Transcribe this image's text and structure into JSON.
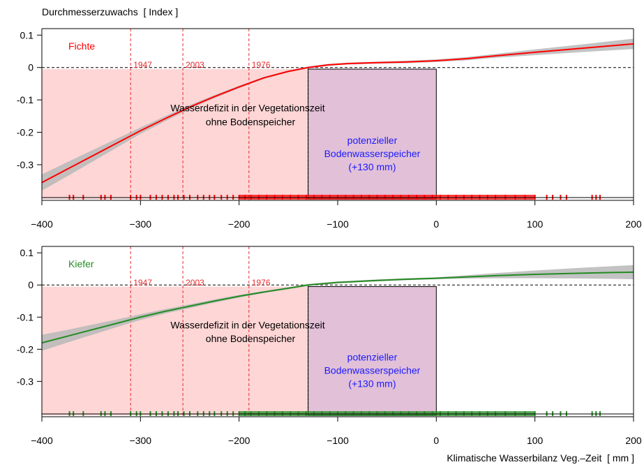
{
  "chart_data": {
    "type": "line",
    "y_axis_title": "Durchmesserzuwachs  [ Index ]",
    "x_axis_title": "Klimatische Wasserbilanz Veg.–Zeit  [ mm ]",
    "xlim": [
      -400,
      200
    ],
    "ylim": [
      -0.41,
      0.12
    ],
    "x_ticks": [
      -400,
      -300,
      -200,
      -100,
      0,
      100,
      200
    ],
    "x_tick_labels": [
      "−400",
      "−300",
      "−200",
      "−100",
      "0",
      "100",
      "200"
    ],
    "y_ticks": [
      0.1,
      0,
      -0.1,
      -0.2,
      -0.3
    ],
    "y_tick_labels": [
      "0.1",
      "0",
      "-0.1",
      "-0.2",
      "-0.3"
    ],
    "deficit_region": {
      "x": [
        -400,
        -130
      ],
      "y_top": -0.005,
      "color": "#ffd6d6",
      "label_line1": "Wasserdefizit in der Vegetationszeit",
      "label_line2": "ohne Bodenspeicher"
    },
    "storage_region": {
      "x": [
        -130,
        0
      ],
      "y_top": -0.005,
      "color": "#e2c0d8",
      "label_line1": "potenzieller",
      "label_line2": "Bodenwasserspeicher",
      "label_line3": "(+130 mm)",
      "label_color": "#1a1aff"
    },
    "year_markers": [
      {
        "label": "1947",
        "x": -310
      },
      {
        "label": "2003",
        "x": -257
      },
      {
        "label": "1976",
        "x": -190
      }
    ],
    "year_marker_color": "#e8292b",
    "panels": [
      {
        "name": "Fichte",
        "color": "#ff0000",
        "series_x": [
          -400,
          -375,
          -350,
          -325,
          -300,
          -275,
          -250,
          -225,
          -200,
          -175,
          -150,
          -130,
          -110,
          -90,
          -60,
          -30,
          0,
          30,
          60,
          100,
          150,
          200
        ],
        "series_y": [
          -0.355,
          -0.315,
          -0.275,
          -0.235,
          -0.195,
          -0.158,
          -0.122,
          -0.09,
          -0.06,
          -0.032,
          -0.012,
          0.0,
          0.008,
          0.012,
          0.015,
          0.017,
          0.021,
          0.027,
          0.036,
          0.047,
          0.06,
          0.073
        ],
        "band_half": [
          0.025,
          0.022,
          0.018,
          0.014,
          0.01,
          0.008,
          0.006,
          0.005,
          0.004,
          0.003,
          0.003,
          0.003,
          0.003,
          0.003,
          0.003,
          0.004,
          0.004,
          0.005,
          0.006,
          0.009,
          0.012,
          0.016
        ]
      },
      {
        "name": "Kiefer",
        "color": "#228b22",
        "series_x": [
          -400,
          -375,
          -350,
          -325,
          -300,
          -275,
          -250,
          -225,
          -200,
          -175,
          -150,
          -130,
          -100,
          -60,
          -30,
          0,
          30,
          60,
          100,
          150,
          200
        ],
        "series_y": [
          -0.18,
          -0.16,
          -0.14,
          -0.12,
          -0.1,
          -0.082,
          -0.066,
          -0.05,
          -0.035,
          -0.022,
          -0.01,
          0.0,
          0.008,
          0.014,
          0.018,
          0.021,
          0.025,
          0.029,
          0.033,
          0.037,
          0.04
        ],
        "band_half": [
          0.025,
          0.02,
          0.016,
          0.012,
          0.009,
          0.007,
          0.006,
          0.005,
          0.004,
          0.003,
          0.003,
          0.003,
          0.003,
          0.003,
          0.003,
          0.003,
          0.005,
          0.008,
          0.012,
          0.017,
          0.022
        ]
      }
    ],
    "rug_x": [
      -372,
      -368,
      -358,
      -340,
      -336,
      -330,
      -310,
      -304,
      -300,
      -290,
      -284,
      -278,
      -272,
      -266,
      -262,
      -256,
      -250,
      -242,
      -236,
      -230,
      -225,
      -218,
      -212,
      -206,
      -200,
      -194,
      -188,
      -180,
      -172,
      -164,
      -156,
      -148,
      -140,
      -132,
      -124,
      -116,
      -108,
      -100,
      -92,
      -84,
      -76,
      -68,
      -60,
      -52,
      -44,
      -36,
      -28,
      -20,
      -12,
      -4,
      4,
      12,
      20,
      28,
      36,
      44,
      52,
      60,
      70,
      80,
      90,
      100,
      112,
      118,
      126,
      132,
      158,
      162,
      166
    ],
    "band_color": "#b8b8b8"
  }
}
